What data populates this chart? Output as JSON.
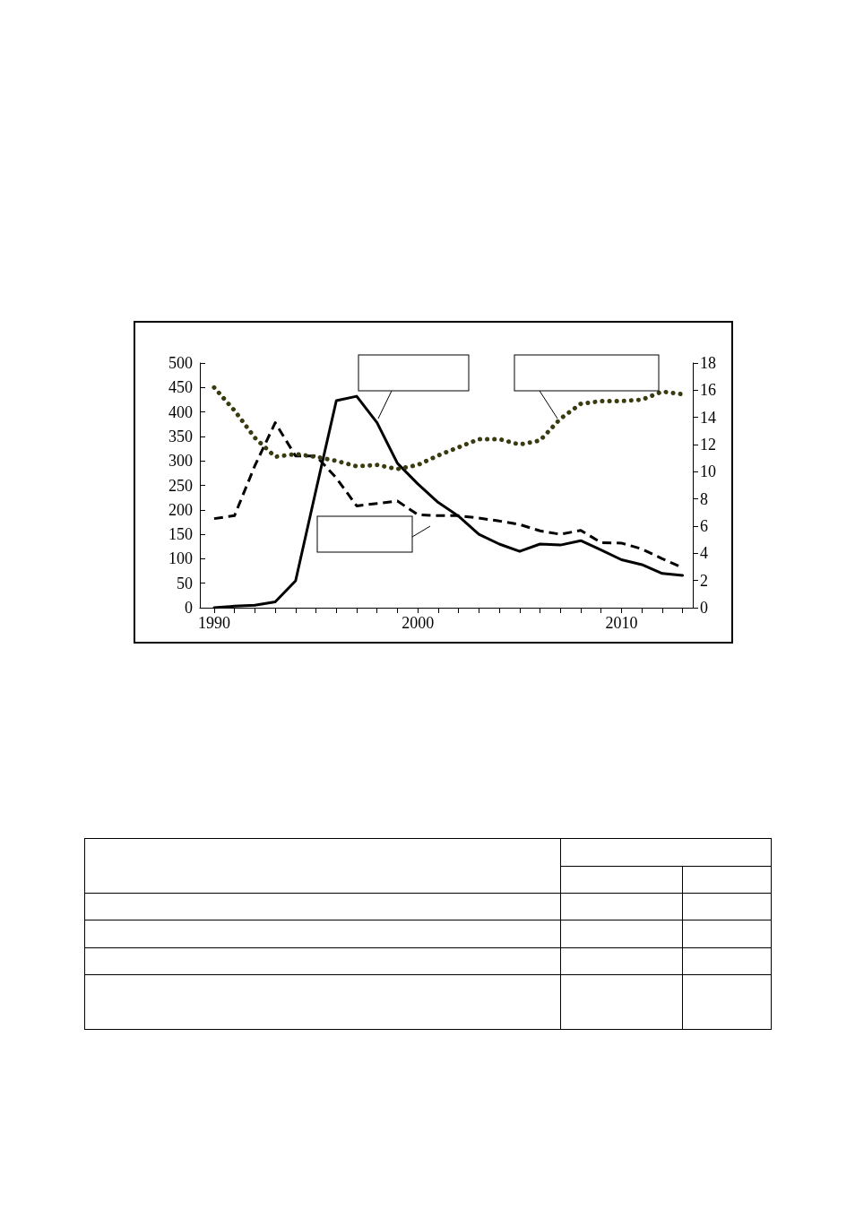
{
  "chart_data": {
    "type": "line",
    "xlim": [
      1989.3,
      2013.5
    ],
    "xticks": [
      1990,
      {
        "value": 1991,
        "label": null
      },
      {
        "value": 1992,
        "label": null
      },
      {
        "value": 1993,
        "label": null
      },
      {
        "value": 1994,
        "label": null
      },
      {
        "value": 1995,
        "label": null
      },
      {
        "value": 1996,
        "label": null
      },
      {
        "value": 1997,
        "label": null
      },
      {
        "value": 1998,
        "label": null
      },
      {
        "value": 1999,
        "label": null
      },
      2000,
      {
        "value": 2001,
        "label": null
      },
      {
        "value": 2002,
        "label": null
      },
      {
        "value": 2003,
        "label": null
      },
      {
        "value": 2004,
        "label": null
      },
      {
        "value": 2005,
        "label": null
      },
      {
        "value": 2006,
        "label": null
      },
      {
        "value": 2007,
        "label": null
      },
      {
        "value": 2008,
        "label": null
      },
      {
        "value": 2009,
        "label": null
      },
      2010,
      {
        "value": 2011,
        "label": null
      },
      {
        "value": 2012,
        "label": null
      },
      {
        "value": 2013,
        "label": null
      }
    ],
    "x": [
      1990,
      1991,
      1992,
      1993,
      1994,
      1995,
      1996,
      1997,
      1998,
      1999,
      2000,
      2001,
      2002,
      2003,
      2004,
      2005,
      2006,
      2007,
      2008,
      2009,
      2010,
      2011,
      2012,
      2013
    ],
    "ylim": [
      0,
      500
    ],
    "yticks": [
      0,
      50,
      100,
      150,
      200,
      250,
      300,
      350,
      400,
      450,
      500
    ],
    "y2lim": [
      0,
      18
    ],
    "y2ticks": [
      0,
      2,
      4,
      6,
      8,
      10,
      12,
      14,
      16,
      18
    ],
    "grid": false,
    "marker": "none",
    "series": [
      {
        "color": "#000000",
        "line_style": "solid",
        "values": [
          0,
          3,
          5,
          12,
          55,
          240,
          423,
          432,
          378,
          295,
          253,
          215,
          187,
          150,
          130,
          115,
          130,
          128,
          137,
          118,
          98,
          88,
          70,
          66
        ]
      },
      {
        "color": "#000000",
        "line_style": "dashed",
        "values": [
          182,
          188,
          290,
          378,
          310,
          310,
          265,
          208,
          213,
          218,
          190,
          188,
          188,
          183,
          177,
          170,
          157,
          150,
          158,
          133,
          132,
          120,
          100,
          82
        ]
      },
      {
        "color": "#3a3a10",
        "line_style": "dotted",
        "axis": "y2",
        "values": [
          16.2,
          14.5,
          12.5,
          11.1,
          11.3,
          11.1,
          10.8,
          10.4,
          10.5,
          10.2,
          10.5,
          11.2,
          11.8,
          12.4,
          12.4,
          12.0,
          12.3,
          13.9,
          15.0,
          15.2,
          15.2,
          15.3,
          15.9,
          15.7
        ]
      }
    ]
  }
}
